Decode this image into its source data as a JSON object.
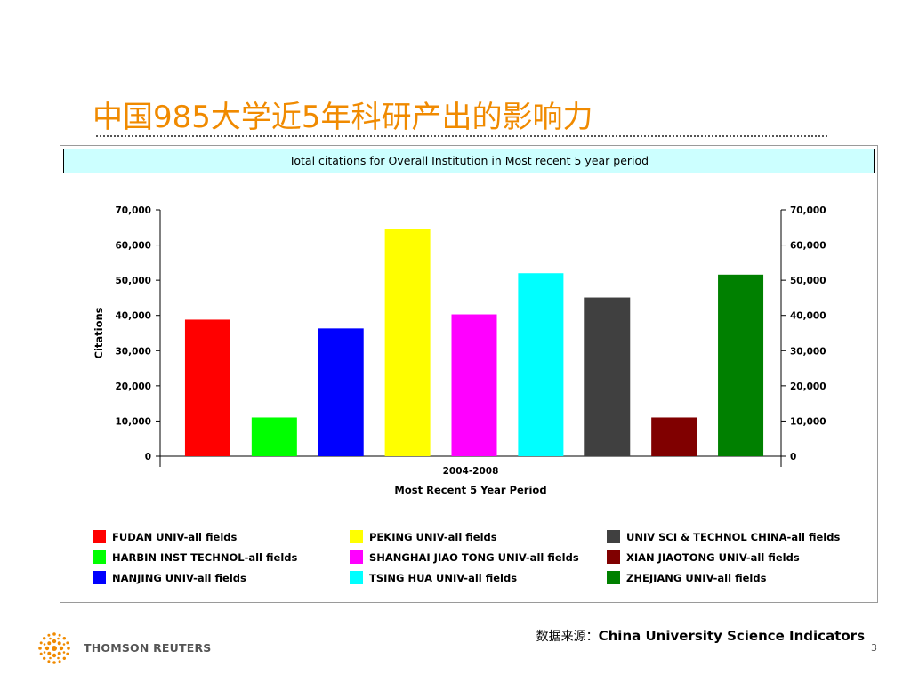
{
  "slide": {
    "title": "中国985大学近5年科研产出的影响力",
    "source_label": "数据来源：",
    "source_value": "China University Science Indicators",
    "page_number": "3",
    "logo_text": "THOMSON REUTERS"
  },
  "chart_data": {
    "type": "bar",
    "title": "Total citations for Overall Institution in Most recent 5 year period",
    "xlabel": "Most Recent 5 Year Period",
    "ylabel": "Citations",
    "categories": [
      "2004-2008"
    ],
    "ylim": [
      0,
      70000
    ],
    "yticks": [
      0,
      10000,
      20000,
      30000,
      40000,
      50000,
      60000,
      70000
    ],
    "ytick_labels": [
      "0",
      "10,000",
      "20,000",
      "30,000",
      "40,000",
      "50,000",
      "60,000",
      "70,000"
    ],
    "secondary_y_axis": true,
    "grid": false,
    "legend_position": "bottom",
    "series": [
      {
        "name": "FUDAN UNIV-all fields",
        "values": [
          38800
        ],
        "color": "#ff0000"
      },
      {
        "name": "HARBIN INST TECHNOL-all fields",
        "values": [
          11000
        ],
        "color": "#00ff00"
      },
      {
        "name": "NANJING UNIV-all fields",
        "values": [
          36300
        ],
        "color": "#0000ff"
      },
      {
        "name": "PEKING UNIV-all fields",
        "values": [
          64600
        ],
        "color": "#ffff00"
      },
      {
        "name": "SHANGHAI JIAO TONG UNIV-all fields",
        "values": [
          40300
        ],
        "color": "#ff00ff"
      },
      {
        "name": "TSING HUA UNIV-all fields",
        "values": [
          52000
        ],
        "color": "#00ffff"
      },
      {
        "name": "UNIV SCI & TECHNOL CHINA-all fields",
        "values": [
          45100
        ],
        "color": "#404040"
      },
      {
        "name": "XIAN JIAOTONG UNIV-all fields",
        "values": [
          11000
        ],
        "color": "#800000"
      },
      {
        "name": "ZHEJIANG UNIV-all fields",
        "values": [
          51600
        ],
        "color": "#008000"
      }
    ]
  }
}
